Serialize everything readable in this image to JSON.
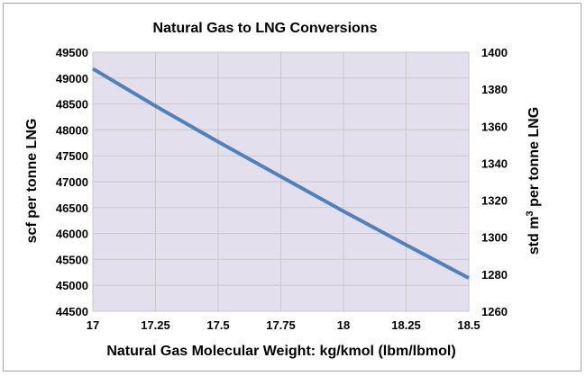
{
  "chart_data": {
    "type": "line",
    "title": "Natural Gas to LNG Conversions",
    "xlabel": "Natural Gas Molecular Weight: kg/kmol (lbm/lbmol)",
    "ylabel": "scf per tonne LNG",
    "y2label_prefix": "std m",
    "y2label_sup": "3",
    "y2label_suffix": " per tonne LNG",
    "xlim": [
      17,
      18.5
    ],
    "ylim": [
      44500,
      49500
    ],
    "y2lim": [
      1260,
      1400
    ],
    "x_ticks": [
      "17",
      "17.25",
      "17.5",
      "17.75",
      "18",
      "18.25",
      "18.5"
    ],
    "y_ticks": [
      "44500",
      "45000",
      "45500",
      "46000",
      "46500",
      "47000",
      "47500",
      "48000",
      "48500",
      "49000",
      "49500"
    ],
    "y2_ticks": [
      "1260",
      "1280",
      "1300",
      "1320",
      "1340",
      "1360",
      "1380",
      "1400"
    ],
    "grid": true,
    "series": [
      {
        "color": "#4f81bd",
        "x": [
          17,
          17.25,
          17.5,
          17.75,
          18,
          18.25,
          18.5
        ],
        "y": [
          49180,
          48460,
          47770,
          47100,
          46430,
          45780,
          45140
        ]
      }
    ],
    "plot_bg": "#e4dfec",
    "grid_color": "#c9c9c9"
  }
}
